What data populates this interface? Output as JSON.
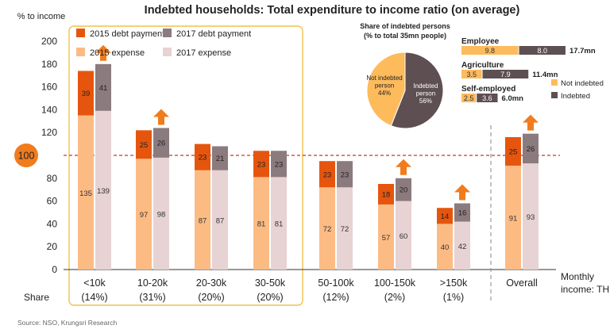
{
  "chart_data": {
    "type": "bar",
    "title": "Indebted households: Total expenditure to income ratio (on average)",
    "ylabel": "% to income",
    "xlabel": "Monthly income: THB",
    "xlabel_lines": [
      "Monthly",
      "income: THB"
    ],
    "ylim": [
      0,
      200
    ],
    "yticks": [
      0,
      20,
      40,
      60,
      80,
      100,
      120,
      140,
      160,
      180,
      200
    ],
    "reference_line": 100,
    "categories": [
      "<10k",
      "10-20k",
      "20-30k",
      "30-50k",
      "50-100k",
      "100-150k",
      ">150k",
      "Overall"
    ],
    "share_label": "Share",
    "shares": [
      "(14%)",
      "(31%)",
      "(20%)",
      "(20%)",
      "(12%)",
      "(2%)",
      "(1%)",
      ""
    ],
    "series": [
      {
        "name": "2015 expense",
        "year": "2015",
        "part": "expense",
        "color": "#FDBB84",
        "values": [
          135,
          97,
          87,
          81,
          72,
          57,
          40,
          91
        ]
      },
      {
        "name": "2015 debt payment",
        "year": "2015",
        "part": "debt",
        "color": "#E6550D",
        "values": [
          39,
          25,
          23,
          23,
          23,
          18,
          14,
          25
        ]
      },
      {
        "name": "2017 expense",
        "year": "2017",
        "part": "expense",
        "color": "#E7D2D4",
        "values": [
          139,
          98,
          87,
          81,
          72,
          60,
          42,
          93
        ]
      },
      {
        "name": "2017 debt payment",
        "year": "2017",
        "part": "debt",
        "color": "#8C7B7E",
        "values": [
          41,
          26,
          21,
          23,
          23,
          20,
          16,
          26
        ]
      }
    ],
    "increase_arrows": [
      true,
      true,
      false,
      false,
      false,
      true,
      true,
      true
    ],
    "legend_order": [
      "2015 debt payment",
      "2017 debt payment",
      "2015 expense",
      "2017 expense"
    ],
    "legend_position": "top-left",
    "highlight_box_categories": [
      "<10k",
      "10-20k",
      "20-30k",
      "30-50k"
    ],
    "grid": false
  },
  "highlight_badge": "100",
  "pie": {
    "title": "Share of indebted persons",
    "subtitle": "(% to total 35mn people)",
    "slices": [
      {
        "label": "Not indebted person",
        "label_lines": [
          "Not indebted",
          "person"
        ],
        "value": 44,
        "display": "44%",
        "color": "#FDBB5C"
      },
      {
        "label": "Indebted person",
        "label_lines": [
          "Indebted",
          "person"
        ],
        "value": 56,
        "display": "56%",
        "color": "#5E4F52"
      }
    ]
  },
  "occupations": [
    {
      "name": "Employee",
      "not_indebted": 9.8,
      "indebted": 8.0,
      "not_indebted_label": "9.8",
      "indebted_label": "8.0",
      "total": "17.7mn"
    },
    {
      "name": "Agriculture",
      "not_indebted": 3.5,
      "indebted": 7.9,
      "not_indebted_label": "3.5",
      "indebted_label": "7.9",
      "total": "11.4mn"
    },
    {
      "name": "Self-employed",
      "not_indebted": 2.5,
      "indebted": 3.6,
      "not_indebted_label": "2.5",
      "indebted_label": "3.6",
      "total": "6.0mn"
    }
  ],
  "occupation_legend": [
    {
      "name": "Not indebted",
      "color": "#FDBB5C"
    },
    {
      "name": "Indebted",
      "color": "#5E4F52"
    }
  ],
  "source": "Source: NSO, Krungsri Research",
  "colors": {
    "highlight_box": "#F2C14E",
    "reference_line": "#C0392B",
    "badge": "#F07C1E",
    "arrow": "#F07C1E",
    "divider": "#9A9A9A"
  }
}
